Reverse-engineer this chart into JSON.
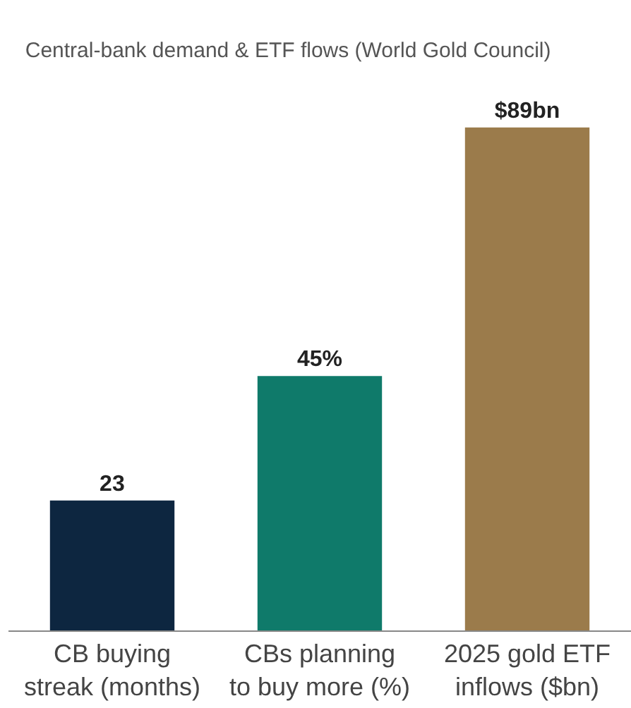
{
  "chart_data": {
    "type": "bar",
    "title": "Central-bank demand & ETF flows (World Gold Council)",
    "categories": [
      "CB buying\nstreak (months)",
      "CBs planning\nto buy more (%)",
      "2025 gold ETF\ninflows ($bn)"
    ],
    "values": [
      23,
      45,
      89
    ],
    "colors": [
      "#0d2640",
      "#0f7a6a",
      "#9b7b4b"
    ],
    "value_labels": [
      "23",
      "45%",
      "$89bn"
    ]
  }
}
